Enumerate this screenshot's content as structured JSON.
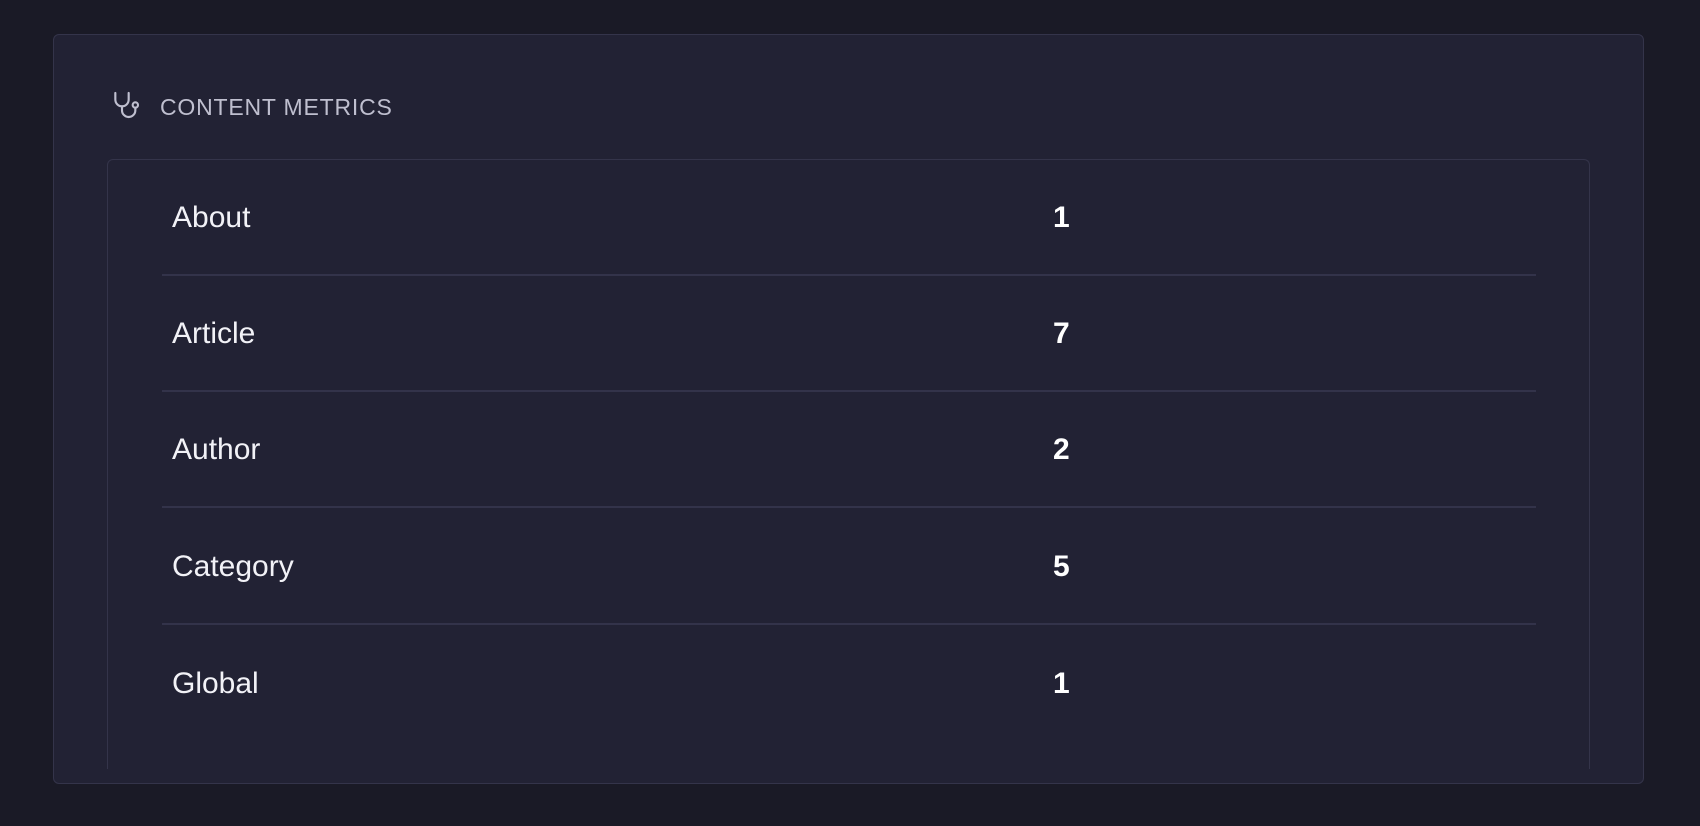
{
  "card": {
    "title": "CONTENT METRICS",
    "icon": "stethoscope-icon",
    "rows": [
      {
        "label": "About",
        "value": "1"
      },
      {
        "label": "Article",
        "value": "7"
      },
      {
        "label": "Author",
        "value": "2"
      },
      {
        "label": "Category",
        "value": "5"
      },
      {
        "label": "Global",
        "value": "1"
      }
    ]
  }
}
